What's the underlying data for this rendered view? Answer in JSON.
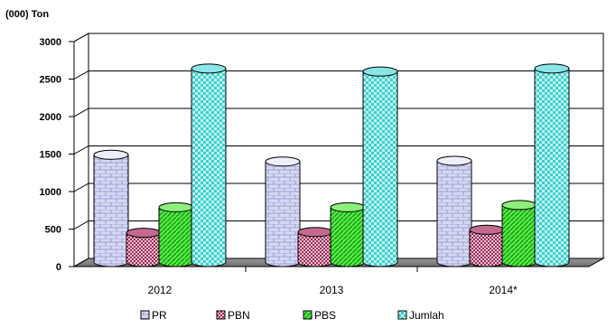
{
  "chart_data": {
    "type": "bar",
    "unit_label": "(000) Ton",
    "categories": [
      "2012",
      "2013",
      "2014*"
    ],
    "ylim": [
      0,
      3000
    ],
    "yticks": [
      "0",
      "500",
      "1000",
      "1500",
      "2000",
      "2500",
      "3000"
    ],
    "grid": true,
    "legend_position": "bottom",
    "series": [
      {
        "name": "PR",
        "values": [
          1430,
          1340,
          1350
        ],
        "color": "#d6d8f2",
        "pattern": "brick"
      },
      {
        "name": "PBN",
        "values": [
          390,
          400,
          430
        ],
        "color": "#a0305a",
        "pattern": "checker"
      },
      {
        "name": "PBS",
        "values": [
          730,
          730,
          760
        ],
        "color": "#33dd22",
        "pattern": "diagonal"
      },
      {
        "name": "Jumlah",
        "values": [
          2580,
          2540,
          2580
        ],
        "color": "#33cccc",
        "pattern": "checker"
      }
    ]
  }
}
